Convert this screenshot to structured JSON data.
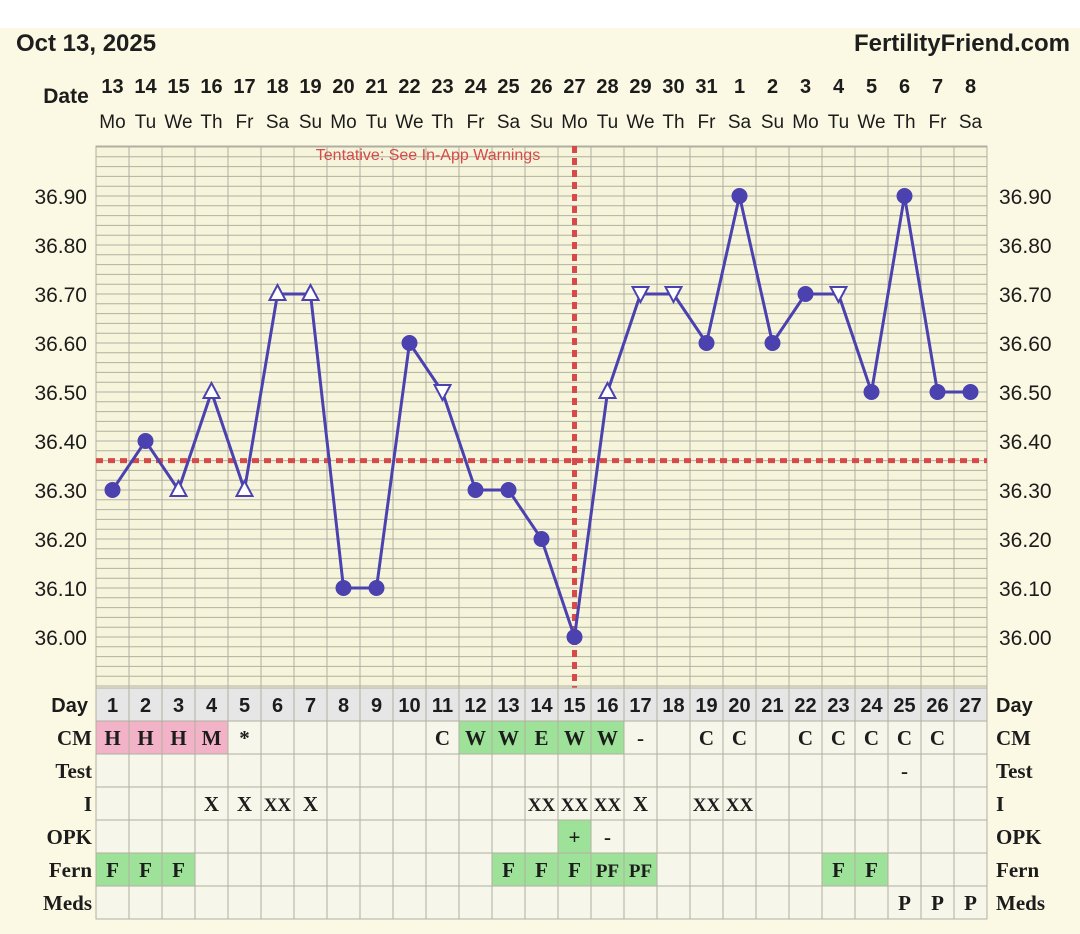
{
  "header": {
    "date": "Oct 13, 2025",
    "brand": "FertilityFriend.com"
  },
  "labels": {
    "date": "Date",
    "tentative": "Tentative: See In-App Warnings"
  },
  "colors": {
    "line": "#4b42b0",
    "coverline": "#d64a4a",
    "grid": "#b0b0a0",
    "chartBg": "#f6f5dc",
    "rowBg": "#f6f6ea",
    "dayRowBg": "#e6e6e6",
    "pink": "#f2b2c8",
    "green": "#9ee29a",
    "text": "#1c1c1c"
  },
  "days": [
    {
      "date": "13",
      "dow": "Mo"
    },
    {
      "date": "14",
      "dow": "Tu"
    },
    {
      "date": "15",
      "dow": "We"
    },
    {
      "date": "16",
      "dow": "Th"
    },
    {
      "date": "17",
      "dow": "Fr"
    },
    {
      "date": "18",
      "dow": "Sa"
    },
    {
      "date": "19",
      "dow": "Su"
    },
    {
      "date": "20",
      "dow": "Mo"
    },
    {
      "date": "21",
      "dow": "Tu"
    },
    {
      "date": "22",
      "dow": "We"
    },
    {
      "date": "23",
      "dow": "Th"
    },
    {
      "date": "24",
      "dow": "Fr"
    },
    {
      "date": "25",
      "dow": "Sa"
    },
    {
      "date": "26",
      "dow": "Su"
    },
    {
      "date": "27",
      "dow": "Mo"
    },
    {
      "date": "28",
      "dow": "Tu"
    },
    {
      "date": "29",
      "dow": "We"
    },
    {
      "date": "30",
      "dow": "Th"
    },
    {
      "date": "31",
      "dow": "Fr"
    },
    {
      "date": "1",
      "dow": "Sa"
    },
    {
      "date": "2",
      "dow": "Su"
    },
    {
      "date": "3",
      "dow": "Mo"
    },
    {
      "date": "4",
      "dow": "Tu"
    },
    {
      "date": "5",
      "dow": "We"
    },
    {
      "date": "6",
      "dow": "Th"
    },
    {
      "date": "7",
      "dow": "Fr"
    },
    {
      "date": "8",
      "dow": "Sa"
    }
  ],
  "chart_data": {
    "type": "line",
    "title": "",
    "x": [
      1,
      2,
      3,
      4,
      5,
      6,
      7,
      8,
      9,
      10,
      11,
      12,
      13,
      14,
      15,
      16,
      17,
      18,
      19,
      20,
      21,
      22,
      23,
      24,
      25,
      26,
      27
    ],
    "ylim": [
      35.92,
      36.99
    ],
    "yticks": [
      "36.00",
      "36.10",
      "36.20",
      "36.30",
      "36.40",
      "36.50",
      "36.60",
      "36.70",
      "36.80",
      "36.90"
    ],
    "coverline": 36.36,
    "ovulation_day": 15,
    "grid": true,
    "series": [
      {
        "values": [
          36.3,
          36.4,
          36.3,
          36.5,
          36.3,
          36.7,
          36.7,
          36.1,
          36.1,
          36.6,
          36.5,
          36.3,
          36.3,
          36.2,
          36.0,
          36.5,
          36.7,
          36.7,
          36.6,
          36.9,
          36.6,
          36.7,
          36.7,
          36.5,
          36.9,
          36.5,
          36.5
        ],
        "markers": [
          "circle",
          "circle",
          "tri-up",
          "tri-up",
          "tri-up",
          "tri-up",
          "tri-up",
          "circle",
          "circle",
          "circle",
          "tri-down",
          "circle",
          "circle",
          "circle",
          "circle",
          "tri-up",
          "tri-down",
          "tri-down",
          "circle",
          "circle",
          "circle",
          "circle",
          "tri-down",
          "circle",
          "circle",
          "circle",
          "circle"
        ]
      }
    ]
  },
  "table": {
    "day_label": "Day",
    "rows": [
      {
        "label": "CM",
        "cells": [
          "H",
          "H",
          "H",
          "M",
          "*",
          "",
          "",
          "",
          "",
          "",
          "C",
          "W",
          "W",
          "E",
          "W",
          "W",
          "-",
          "",
          "C",
          "C",
          "",
          "C",
          "C",
          "C",
          "C",
          "C",
          ""
        ],
        "fills": [
          "pink",
          "pink",
          "pink",
          "pink",
          "",
          "",
          "",
          "",
          "",
          "",
          "",
          "green",
          "green",
          "green",
          "green",
          "green",
          "",
          "",
          "",
          "",
          "",
          "",
          "",
          "",
          "",
          "",
          ""
        ]
      },
      {
        "label": "Test",
        "cells": [
          "",
          "",
          "",
          "",
          "",
          "",
          "",
          "",
          "",
          "",
          "",
          "",
          "",
          "",
          "",
          "",
          "",
          "",
          "",
          "",
          "",
          "",
          "",
          "",
          "-",
          "",
          ""
        ],
        "fills": [
          "",
          "",
          "",
          "",
          "",
          "",
          "",
          "",
          "",
          "",
          "",
          "",
          "",
          "",
          "",
          "",
          "",
          "",
          "",
          "",
          "",
          "",
          "",
          "",
          "",
          "",
          ""
        ]
      },
      {
        "label": "I",
        "cells": [
          "",
          "",
          "",
          "X",
          "X",
          "XX",
          "X",
          "",
          "",
          "",
          "",
          "",
          "",
          "XX",
          "XX",
          "XX",
          "X",
          "",
          "XX",
          "XX",
          "",
          "",
          "",
          "",
          "",
          "",
          ""
        ],
        "fills": [
          "",
          "",
          "",
          "",
          "",
          "",
          "",
          "",
          "",
          "",
          "",
          "",
          "",
          "",
          "",
          "",
          "",
          "",
          "",
          "",
          "",
          "",
          "",
          "",
          "",
          "",
          ""
        ]
      },
      {
        "label": "OPK",
        "cells": [
          "",
          "",
          "",
          "",
          "",
          "",
          "",
          "",
          "",
          "",
          "",
          "",
          "",
          "",
          "+",
          "-",
          "",
          "",
          "",
          "",
          "",
          "",
          "",
          "",
          "",
          "",
          ""
        ],
        "fills": [
          "",
          "",
          "",
          "",
          "",
          "",
          "",
          "",
          "",
          "",
          "",
          "",
          "",
          "",
          "green",
          "",
          "",
          "",
          "",
          "",
          "",
          "",
          "",
          "",
          "",
          "",
          ""
        ]
      },
      {
        "label": "Fern",
        "cells": [
          "F",
          "F",
          "F",
          "",
          "",
          "",
          "",
          "",
          "",
          "",
          "",
          "",
          "F",
          "F",
          "F",
          "PF",
          "PF",
          "",
          "",
          "",
          "",
          "",
          "F",
          "F",
          "",
          "",
          ""
        ],
        "fills": [
          "green",
          "green",
          "green",
          "",
          "",
          "",
          "",
          "",
          "",
          "",
          "",
          "",
          "green",
          "green",
          "green",
          "green",
          "green",
          "",
          "",
          "",
          "",
          "",
          "green",
          "green",
          "",
          "",
          ""
        ]
      },
      {
        "label": "Meds",
        "cells": [
          "",
          "",
          "",
          "",
          "",
          "",
          "",
          "",
          "",
          "",
          "",
          "",
          "",
          "",
          "",
          "",
          "",
          "",
          "",
          "",
          "",
          "",
          "",
          "",
          "P",
          "P",
          "P"
        ],
        "fills": [
          "",
          "",
          "",
          "",
          "",
          "",
          "",
          "",
          "",
          "",
          "",
          "",
          "",
          "",
          "",
          "",
          "",
          "",
          "",
          "",
          "",
          "",
          "",
          "",
          "",
          "",
          ""
        ]
      }
    ]
  }
}
